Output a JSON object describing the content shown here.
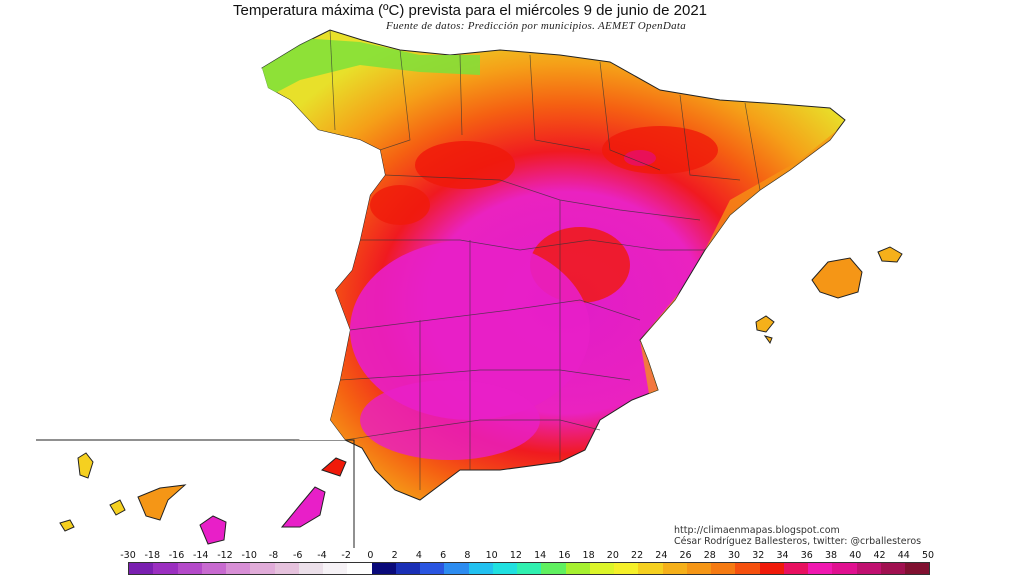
{
  "map": {
    "title": "Temperatura máxima (ºC) prevista para el miércoles 9 de junio de 2021",
    "subtitle": "Fuente de datos: Predicción por municipios. AEMET OpenData",
    "credits": {
      "blog": "http://climaenmapas.blogspot.com",
      "author": "César Rodríguez Ballesteros, twitter: @crballesteros"
    },
    "regions": [
      "Península Ibérica (España)",
      "Islas Baleares",
      "Islas Canarias"
    ]
  },
  "legend": {
    "labels": [
      "-30",
      "-18",
      "-16",
      "-14",
      "-12",
      "-10",
      "-8",
      "-6",
      "-4",
      "-2",
      "0",
      "2",
      "4",
      "6",
      "8",
      "10",
      "12",
      "14",
      "16",
      "18",
      "20",
      "22",
      "24",
      "26",
      "28",
      "30",
      "32",
      "34",
      "36",
      "38",
      "40",
      "42",
      "44",
      "50"
    ],
    "colors": [
      "#7a1fb0",
      "#9b2fc0",
      "#b44ac9",
      "#c86ad0",
      "#d88fd6",
      "#e1acd9",
      "#e6c2dd",
      "#ece0ea",
      "#f6f2f6",
      "#ffffff",
      "#0a0a7a",
      "#1a2fb5",
      "#2a55e0",
      "#2d8cf0",
      "#22c1f0",
      "#20e0e0",
      "#30f0b0",
      "#60f060",
      "#a6f030",
      "#dcf52a",
      "#f5f02a",
      "#f5d020",
      "#f5b01a",
      "#f59616",
      "#f57a12",
      "#f5500e",
      "#f01a0a",
      "#e81060",
      "#f018b0",
      "#e01090",
      "#c01070",
      "#a01050",
      "#801030"
    ]
  }
}
